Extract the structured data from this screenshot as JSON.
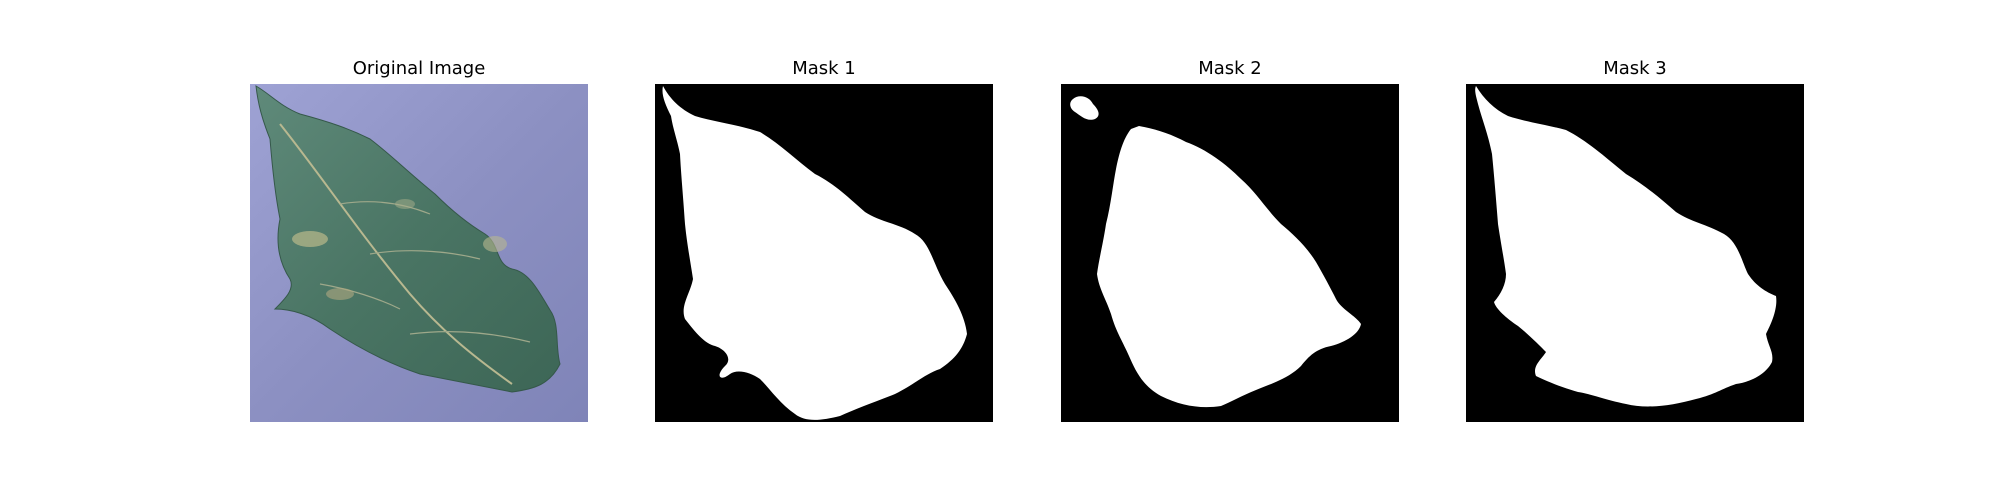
{
  "figure": {
    "panels": [
      {
        "title": "Original Image",
        "content": "leaf-photo"
      },
      {
        "title": "Mask 1",
        "content": "segmentation-mask"
      },
      {
        "title": "Mask 2",
        "content": "segmentation-mask"
      },
      {
        "title": "Mask 3",
        "content": "segmentation-mask"
      }
    ],
    "colors": {
      "background_cloth": "#8f93c4",
      "leaf": "#4e7a6a",
      "mask_foreground": "#ffffff",
      "mask_background": "#000000"
    }
  }
}
